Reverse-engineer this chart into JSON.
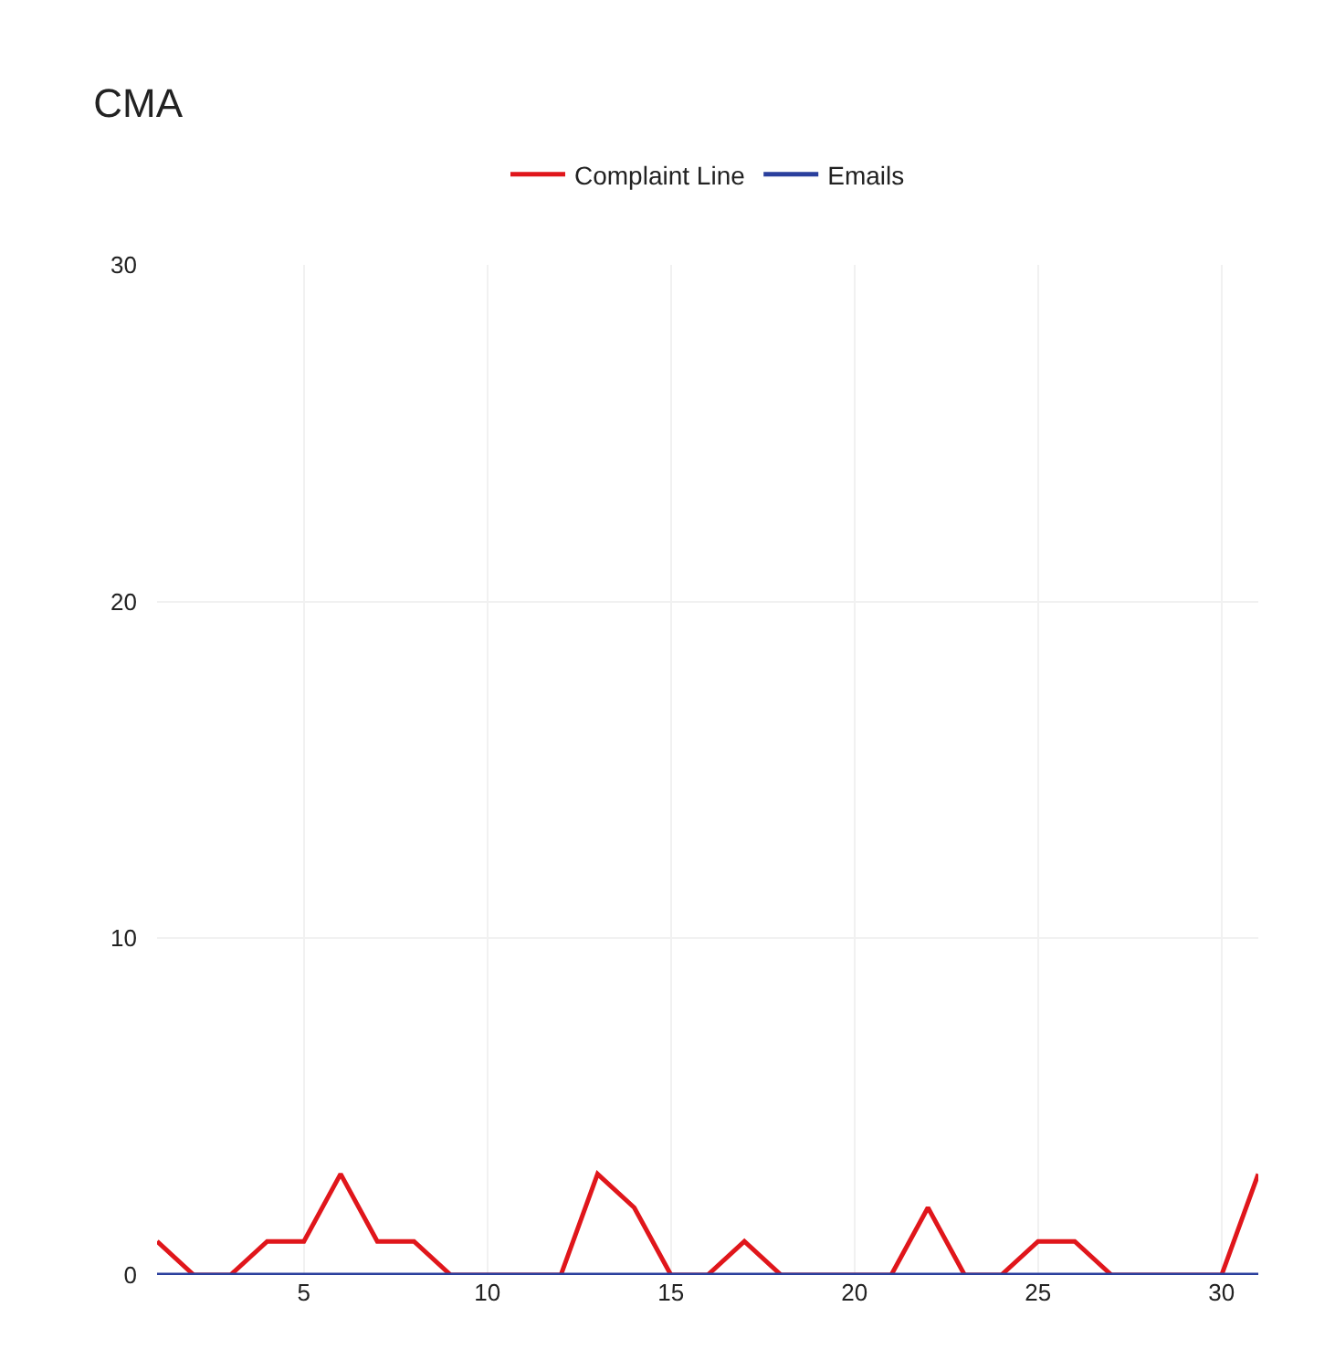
{
  "chart_data": {
    "type": "line",
    "title": "CMA",
    "x": [
      1,
      2,
      3,
      4,
      5,
      6,
      7,
      8,
      9,
      10,
      11,
      12,
      13,
      14,
      15,
      16,
      17,
      18,
      19,
      20,
      21,
      22,
      23,
      24,
      25,
      26,
      27,
      28,
      29,
      30,
      31
    ],
    "series": [
      {
        "name": "Complaint Line",
        "color": "#e0161b",
        "values": [
          1,
          0,
          0,
          1,
          1,
          3,
          1,
          1,
          0,
          0,
          0,
          0,
          3,
          2,
          0,
          0,
          1,
          0,
          0,
          0,
          0,
          2,
          0,
          0,
          1,
          1,
          0,
          0,
          0,
          0,
          3
        ]
      },
      {
        "name": "Emails",
        "color": "#2a3f9d",
        "values": [
          0,
          0,
          0,
          0,
          0,
          0,
          0,
          0,
          0,
          0,
          0,
          0,
          0,
          0,
          0,
          0,
          0,
          0,
          0,
          0,
          0,
          0,
          0,
          0,
          0,
          0,
          0,
          0,
          0,
          0,
          0
        ]
      }
    ],
    "xlim": [
      1,
      31
    ],
    "xticks": [
      5,
      10,
      15,
      20,
      25,
      30
    ],
    "ylim": [
      0,
      30
    ],
    "yticks": [
      0,
      10,
      20,
      30
    ],
    "grid": true,
    "legend": "top",
    "marker": "none",
    "line_style": "solid"
  }
}
